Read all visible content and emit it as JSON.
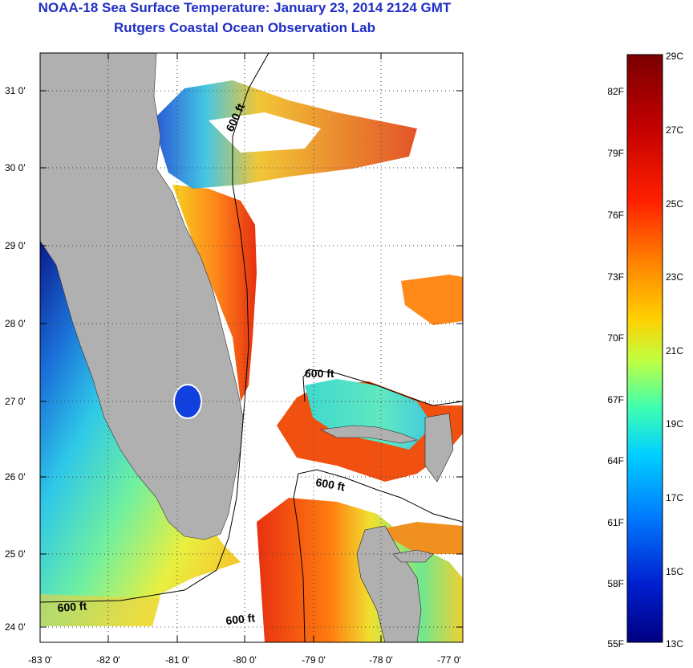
{
  "title": "NOAA-18 Sea Surface Temperature:  January 23, 2014 2124 GMT",
  "subtitle": "Rutgers Coastal Ocean Observation Lab",
  "map": {
    "lat_ticks": [
      "31 0'",
      "30 0'",
      "29 0'",
      "28 0'",
      "27 0'",
      "26 0'",
      "25 0'",
      "24 0'"
    ],
    "lon_ticks": [
      "-83 0'",
      "-82 0'",
      "-81 0'",
      "-80 0'",
      "-79 0'",
      "-78 0'",
      "-77 0'"
    ],
    "contour_labels": [
      "600 ft",
      "600 ft",
      "600 ft",
      "600 ft",
      "600 ft"
    ],
    "land_color": "#b0b0b0",
    "ocean_colors": [
      "#0a1a8c",
      "#2ea0e0",
      "#3fe0d0",
      "#d8f050",
      "#ff8a1a",
      "#e83010",
      "#a00010"
    ]
  },
  "colorbar": {
    "celsius_labels": [
      "29C",
      "27C",
      "25C",
      "23C",
      "21C",
      "19C",
      "17C",
      "15C",
      "13C"
    ],
    "fahrenheit_labels": [
      "82F",
      "79F",
      "76F",
      "73F",
      "70F",
      "67F",
      "64F",
      "61F",
      "58F",
      "55F"
    ],
    "colors": [
      "#7a0000",
      "#c00000",
      "#ff2000",
      "#ff8000",
      "#ffd000",
      "#c0ff40",
      "#40ffb0",
      "#00d0ff",
      "#0080ff",
      "#0020d0",
      "#000080"
    ]
  }
}
